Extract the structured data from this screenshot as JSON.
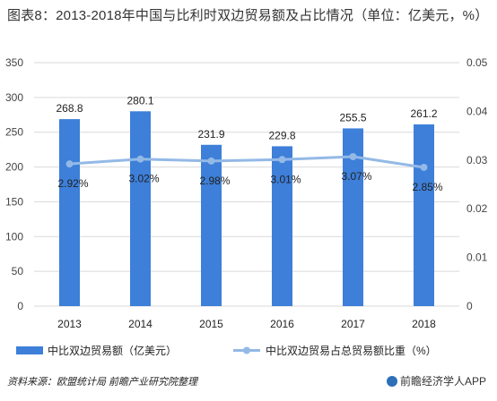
{
  "title": "图表8：2013-2018年中国与比利时双边贸易额及占比情况（单位：亿美元，%）",
  "source": "资料来源：欧盟统计局 前瞻产业研究院整理",
  "brand": "前瞻经济学人APP",
  "colors": {
    "bar": "#3d7fd9",
    "line": "#93b9e6",
    "grid": "#d9d9d9"
  },
  "chart_data": {
    "type": "bar",
    "categories": [
      "2013",
      "2014",
      "2015",
      "2016",
      "2017",
      "2018"
    ],
    "series": [
      {
        "name": "中比双边贸易额（亿美元）",
        "type": "bar",
        "axis": "left",
        "values": [
          268.8,
          280.1,
          231.9,
          229.8,
          255.5,
          261.2
        ],
        "labels": [
          "268.8",
          "280.1",
          "231.9",
          "229.8",
          "255.5",
          "261.2"
        ]
      },
      {
        "name": "中比双边贸易占总贸易额比重（%）",
        "type": "line",
        "axis": "right",
        "values": [
          0.0292,
          0.0302,
          0.0298,
          0.0301,
          0.0307,
          0.0285
        ],
        "labels": [
          "2.92%",
          "3.02%",
          "2.98%",
          "3.01%",
          "3.07%",
          "2.85%"
        ]
      }
    ],
    "y_left": {
      "min": 0,
      "max": 350,
      "ticks": [
        "0",
        "50",
        "100",
        "150",
        "200",
        "250",
        "300",
        "350"
      ]
    },
    "y_right": {
      "min": 0,
      "max": 0.05,
      "ticks": [
        "0",
        "0.01",
        "0.02",
        "0.03",
        "0.04",
        "0.05"
      ]
    },
    "grid": true,
    "legend": "bottom"
  }
}
